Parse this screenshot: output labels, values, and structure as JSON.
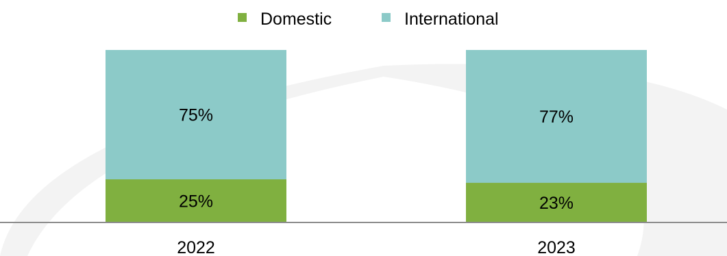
{
  "chart_data": {
    "type": "bar",
    "stacked": true,
    "percent_stacked": true,
    "categories": [
      "2022",
      "2023"
    ],
    "series": [
      {
        "name": "Domestic",
        "values": [
          25,
          23
        ],
        "labels": [
          "25%",
          "23%"
        ],
        "color": "#80b040"
      },
      {
        "name": "International",
        "values": [
          75,
          77
        ],
        "labels": [
          "75%",
          "77%"
        ],
        "color": "#8ccac8"
      }
    ],
    "ylim": [
      0,
      100
    ],
    "grid": false,
    "legend_position": "top-center",
    "background_swoosh_color": "#f3f3f3",
    "axis_color": "#8c8c8c"
  }
}
